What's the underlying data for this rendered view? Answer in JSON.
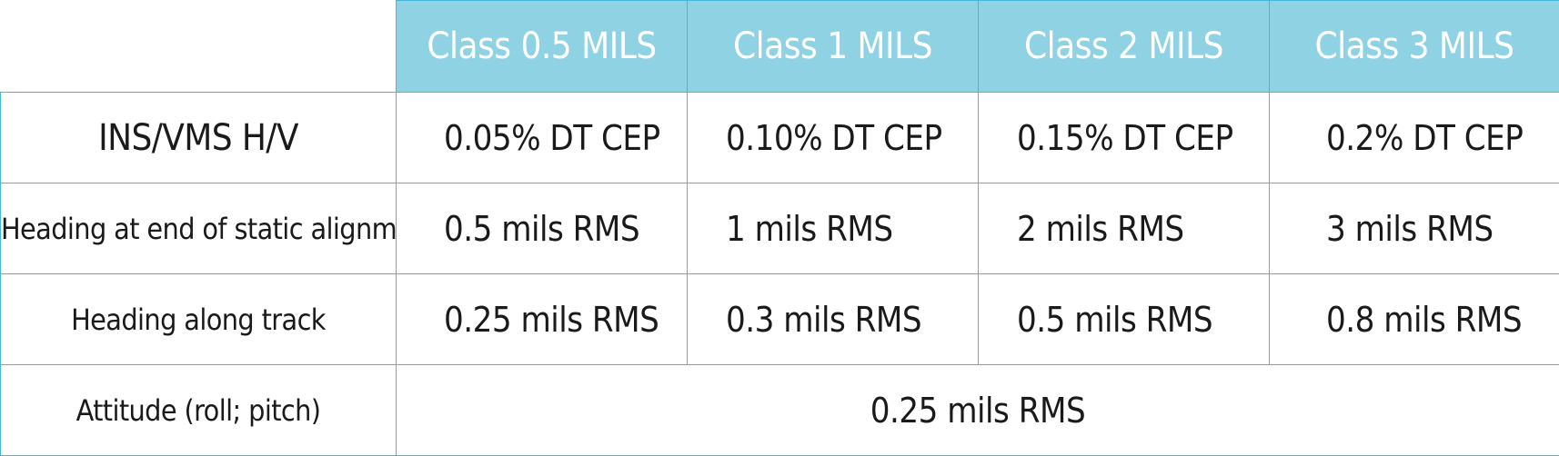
{
  "table": {
    "headers": [
      "Class 0.5 MILS",
      "Class 1 MILS",
      "Class 2 MILS",
      "Class 3 MILS"
    ],
    "rows": [
      {
        "label": "INS/VMS H/V",
        "values": [
          "0.05% DT CEP",
          "0.10% DT CEP",
          "0.15% DT CEP",
          "0.2% DT CEP"
        ]
      },
      {
        "label": "Heading at end of static alignment",
        "values": [
          "0.5 mils RMS",
          "1 mils RMS",
          "2 mils RMS",
          "3 mils RMS"
        ]
      },
      {
        "label": "Heading along track",
        "values": [
          "0.25 mils RMS",
          "0.3 mils RMS",
          "0.5 mils RMS",
          "0.8 mils RMS"
        ]
      },
      {
        "label": "Attitude (roll; pitch)",
        "merged_value": "0.25 mils RMS"
      }
    ]
  },
  "colors": {
    "header_background": "#8fd2e4",
    "header_text": "#ffffff",
    "grid_line": "#45b8da",
    "body_text": "#1a1a1a"
  }
}
